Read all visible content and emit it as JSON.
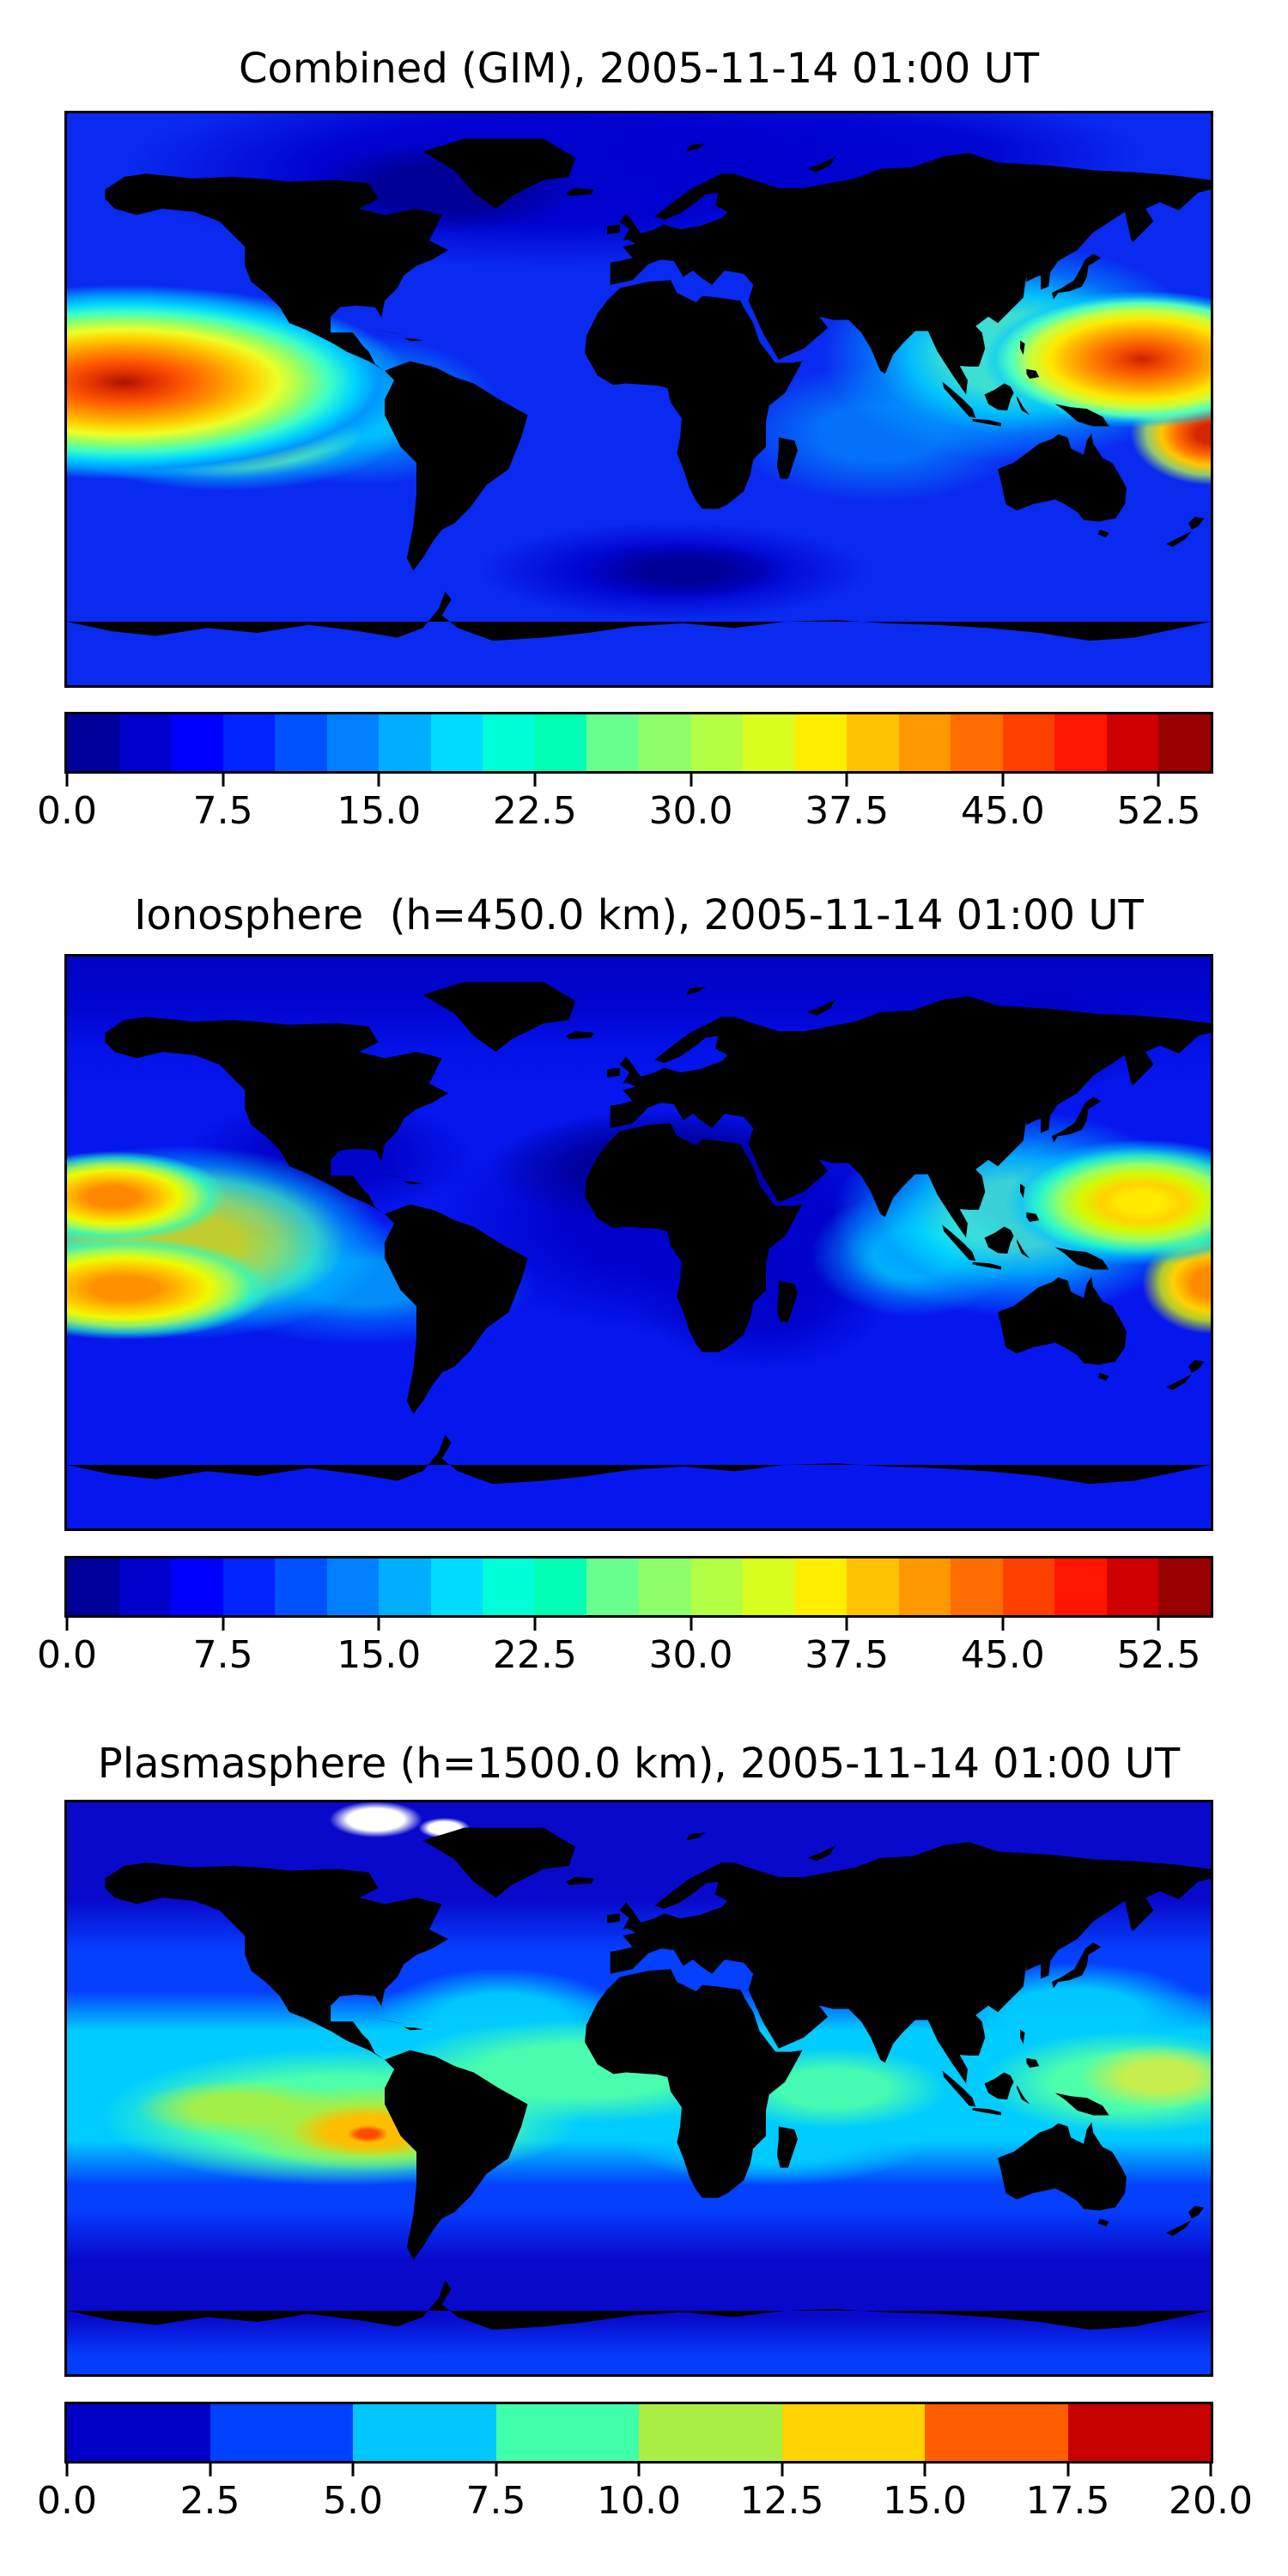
{
  "figure": {
    "background": "#ffffff",
    "map_border_color": "#000000",
    "coastline_color": "#000000"
  },
  "panels": [
    {
      "id": "combined",
      "title": "Combined (GIM), 2005-11-14 01:00 UT",
      "field_base": "#0a2af0",
      "field_layers": [
        "radial-gradient(ellipse 12% 8% at 33% 13%, rgba(0,0,150,0.95) 0% 50%, rgba(0,0,150,0) 100%)",
        "radial-gradient(ellipse 9% 5% at 54% 80%, rgba(0,0,150,0.95) 0% 40%, rgba(0,0,150,0) 100%)",
        "radial-gradient(ellipse 25% 17% at 5% 47%, #a81400 0%, #e03000 10%, #ff5a00 22%, #ff9400 34%, #ffd000 45%, #ecff28 54%, #96ff64 63%, #3cffc8 72%, #00d2ff 81%, #0096ff 89%, rgba(0,80,255,0) 100%)",
        "radial-gradient(ellipse 15% 10% at 14% 56%, rgba(255,214,0,0.9) 0% 22%, rgba(200,255,40,0.85) 40%, rgba(80,255,190,0.8) 60%, rgba(0,190,255,0.55) 78%, rgba(0,110,255,0) 100%)",
        "radial-gradient(ellipse 12% 13% at 26% 52%, rgba(0,216,255,0.85) 0% 35%, rgba(0,160,255,0.6) 62%, rgba(0,90,255,0) 100%)",
        "radial-gradient(ellipse 14% 12% at 94% 43%, #cc2200 0%, #f04800 14%, #ff7800 30%, #ffb400 46%, #ffe800 58%, #c8ff3c 70%, #50ffbe 82%, rgba(0,200,255,0.55) 92%, rgba(0,120,255,0) 100%)",
        "radial-gradient(ellipse 7% 9% at 100% 56%, #d42600 0% 18%, #ff6a00 42%, #ffc800 62%, rgba(190,255,70,0.75) 80%, rgba(0,200,255,0) 100%)",
        "radial-gradient(ellipse 17% 19% at 83% 42%, rgba(70,255,205,0.85) 0% 35%, rgba(0,225,255,0.8) 55%, rgba(0,160,255,0.55) 75%, rgba(0,80,255,0) 100%)",
        "radial-gradient(ellipse 13% 12% at 71% 56%, rgba(0,170,255,0.55) 0% 40%, rgba(0,100,255,0) 100%)",
        "radial-gradient(ellipse 38% 17% at 43% 10%, rgba(0,0,205,0.95) 0% 55%, rgba(0,0,205,0) 100%)",
        "radial-gradient(ellipse 26% 11% at 68% 7%, rgba(0,0,205,0.85) 0% 50%, rgba(0,0,205,0) 100%)",
        "radial-gradient(ellipse 18% 9% at 53% 80%, rgba(0,0,205,0.9) 0% 45%, rgba(0,0,205,0) 95%)"
      ],
      "colorbar": {
        "vmin": 0,
        "vmax": 55,
        "tick_values": [
          0,
          7.5,
          15,
          22.5,
          30,
          37.5,
          45,
          52.5
        ],
        "ticks": [
          "0.0",
          "7.5",
          "15.0",
          "22.5",
          "30.0",
          "37.5",
          "45.0",
          "52.5"
        ],
        "colors": [
          "#00009b",
          "#0000cd",
          "#0000ff",
          "#0023ff",
          "#0051ff",
          "#0080ff",
          "#00aeff",
          "#00dcff",
          "#00ffd9",
          "#00ffb3",
          "#69ff8e",
          "#8eff69",
          "#b3ff44",
          "#d9ff1e",
          "#ffed00",
          "#ffc200",
          "#ff9700",
          "#ff6c00",
          "#ff4100",
          "#ff1600",
          "#cf0000",
          "#990000"
        ]
      }
    },
    {
      "id": "ionosphere",
      "title": "Ionosphere  (h=450.0 km), 2005-11-14 01:00 UT",
      "field_base": "#0617ee",
      "field_layers": [
        "radial-gradient(ellipse 10% 8% at 4% 42%, #ff8800 0% 22%, #ffc400 42%, #eefa00 58%, rgba(160,255,90,0.9) 72%, rgba(40,255,195,0.7) 85%, rgba(0,160,255,0) 100%)",
        "radial-gradient(ellipse 13% 9% at 5% 58%, #ff9000 0% 22%, #ffc800 42%, #eefa00 58%, rgba(160,255,90,0.9) 73%, rgba(40,255,195,0.65) 86%, rgba(0,160,255,0) 100%)",
        "radial-gradient(ellipse 18% 17% at 10% 50%, rgba(238,250,0,0.8) 0% 28%, rgba(160,255,90,0.8) 48%, rgba(60,255,195,0.75) 66%, rgba(0,190,255,0.55) 80%, rgba(0,110,255,0) 100%)",
        "radial-gradient(ellipse 15% 11% at 26% 57%, rgba(0,190,255,0.7) 0% 35%, rgba(0,130,255,0.5) 62%, rgba(0,70,255,0) 100%)",
        "radial-gradient(ellipse 12% 11% at 94% 43%, #ffea00 0% 16%, #ffd200 30%, #d8f800 45%, #96ff64 60%, rgba(40,255,200,0.85) 75%, rgba(0,190,255,0.55) 88%, rgba(0,100,255,0) 100%)",
        "radial-gradient(ellipse 6% 9% at 100% 57%, #ff8c00 0% 28%, #ffd200 55%, rgba(216,248,0,0.8) 74%, rgba(80,255,195,0) 100%)",
        "radial-gradient(ellipse 16% 18% at 83% 45%, rgba(70,255,210,0.8) 0% 32%, rgba(0,215,255,0.75) 55%, rgba(0,150,255,0.55) 76%, rgba(0,80,255,0) 100%)",
        "radial-gradient(ellipse 9% 11% at 74% 52%, rgba(0,225,255,0.8) 0% 38%, rgba(0,150,255,0.5) 70%, rgba(0,80,255,0) 100%)",
        "radial-gradient(ellipse 15% 10% at 52% 37%, rgba(0,0,150,0.92) 0% 45%, rgba(0,0,150,0) 100%)",
        "radial-gradient(ellipse 23% 21% at 55% 46%, rgba(0,0,200,0.95) 0% 48%, rgba(0,0,200,0) 100%)",
        "radial-gradient(ellipse 11% 13% at 61% 60%, rgba(0,0,200,0.85) 0% 40%, rgba(0,0,200,0) 100%)",
        "radial-gradient(ellipse 13% 11% at 23% 35%, rgba(0,0,195,0.85) 0% 40%, rgba(0,0,195,0) 100%)",
        "linear-gradient(180deg, rgba(0,0,190,0.9) 0%, rgba(0,0,200,0.8) 9%, rgba(0,10,225,0.4) 16%, rgba(0,0,0,0) 25%)",
        "radial-gradient(ellipse 13% 10% at 83% 14%, rgba(0,0,175,0.9) 0% 40%, rgba(0,0,175,0) 100%)"
      ],
      "colorbar": {
        "vmin": 0,
        "vmax": 55,
        "tick_values": [
          0,
          7.5,
          15,
          22.5,
          30,
          37.5,
          45,
          52.5
        ],
        "ticks": [
          "0.0",
          "7.5",
          "15.0",
          "22.5",
          "30.0",
          "37.5",
          "45.0",
          "52.5"
        ],
        "colors": [
          "#00009b",
          "#0000cd",
          "#0000ff",
          "#0023ff",
          "#0051ff",
          "#0080ff",
          "#00aeff",
          "#00dcff",
          "#00ffd9",
          "#00ffb3",
          "#69ff8e",
          "#8eff69",
          "#b3ff44",
          "#d9ff1e",
          "#ffed00",
          "#ffc200",
          "#ff9700",
          "#ff6c00",
          "#ff4100",
          "#ff1600",
          "#cf0000",
          "#990000"
        ]
      }
    },
    {
      "id": "plasmasphere",
      "title": "Plasmasphere (h=1500.0 km), 2005-11-14 01:00 UT",
      "field_base": "#0909cc",
      "field_layers": [
        "radial-gradient(ellipse 4.5% 3.5% at 27% 3%, #ffffff 0% 55%, rgba(255,255,255,0) 90%)",
        "radial-gradient(ellipse 2.5% 2% at 33% 4.5%, #ffffff 0% 55%, rgba(255,255,255,0) 90%)",
        "radial-gradient(ellipse 1.8% 1.5% at 26.3% 58%, #ff4a00 0% 50%, rgba(255,74,0,0) 100%)",
        "radial-gradient(ellipse 7.5% 5% at 26.5% 57.5%, #ffbe00 0% 52%, rgba(255,190,0,0) 92%)",
        "radial-gradient(ellipse 14% 8% at 27% 57%, #a6ee44 0% 52%, rgba(166,238,68,0) 95%)",
        "radial-gradient(ellipse 9% 5% at 15% 53.5%, rgba(166,238,68,0.95) 0% 45%, rgba(166,238,68,0) 100%)",
        "radial-gradient(ellipse 7.5% 6% at 95.5% 48%, #c6ee4e 0% 42%, rgba(198,238,78,0) 95%)",
        "radial-gradient(ellipse 21% 12% at 24% 55%, #4dffaa 0% 58%, rgba(77,255,170,0) 100%)",
        "radial-gradient(ellipse 17% 9% at 45% 47%, rgba(77,255,170,0.95) 0% 52%, rgba(77,255,170,0) 100%)",
        "radial-gradient(ellipse 10% 7% at 67% 50%, rgba(77,255,170,0.9) 0% 48%, rgba(77,255,170,0) 100%)",
        "radial-gradient(ellipse 13% 9% at 93% 49%, #4dffaa 0% 52%, rgba(77,255,170,0) 100%)",
        "radial-gradient(ellipse 3% 3% at 57% 51%, #0540ff 0% 50%, rgba(5,64,255,0) 100%)",
        "radial-gradient(ellipse 11% 9% at 38% 38%, rgba(0,204,255,0.95) 0% 50%, rgba(0,204,255,0) 100%)",
        "radial-gradient(ellipse 12% 9% at 88% 37%, rgba(0,204,255,0.95) 0% 50%, rgba(0,204,255,0) 100%)",
        "radial-gradient(ellipse 14% 9% at 62% 58%, rgba(0,204,255,0.95) 0% 55%, rgba(0,204,255,0) 100%)",
        "linear-gradient(180deg, rgba(0,204,255,0) 33%, #00ccff 40% 59%, rgba(0,204,255,0) 67%)",
        "linear-gradient(180deg, rgba(5,64,255,0) 17%, #0540ff 26% 71%, rgba(5,64,255,0) 80%)",
        "linear-gradient(180deg, rgba(5,64,255,0) 90%, rgba(5,64,255,0.95) 97% 100%)"
      ],
      "colorbar": {
        "vmin": 0,
        "vmax": 20,
        "tick_values": [
          0,
          2.5,
          5,
          7.5,
          10,
          12.5,
          15,
          17.5,
          20
        ],
        "ticks": [
          "0.0",
          "2.5",
          "5.0",
          "7.5",
          "10.0",
          "12.5",
          "15.0",
          "17.5",
          "20.0"
        ],
        "colors": [
          "#0000c7",
          "#0040ff",
          "#00c8ff",
          "#40ffaa",
          "#aaee44",
          "#ffd200",
          "#ff5c00",
          "#c70000"
        ]
      }
    }
  ],
  "chart_data": [
    {
      "type": "heatmap",
      "subplot": 1,
      "title": "Combined (GIM), 2005-11-14 01:00 UT",
      "projection": "equirectangular world map, lon -180..180, lat -90..90, coastlines drawn in black",
      "colormap": "jet (filled contours)",
      "contour_interval": 2.5,
      "value_range": [
        0,
        55
      ],
      "colorbar_ticks": [
        0.0,
        7.5,
        15.0,
        22.5,
        30.0,
        37.5,
        45.0,
        52.5
      ],
      "features": [
        {
          "region": "central/eastern Pacific dayside maximum (dark red core)",
          "lon": -162,
          "lat": 5,
          "value": 54
        },
        {
          "region": "warm lobe extending southeast toward South America",
          "lon": -135,
          "lat": -10,
          "value": 35
        },
        {
          "region": "western Pacific maximum north of New Guinea (red core)",
          "lon": 158,
          "lat": 12,
          "value": 50
        },
        {
          "region": "western Pacific maximum at right map edge near Fiji",
          "lon": 175,
          "lat": -12,
          "value": 52
        },
        {
          "region": "cyan/green enhancement over Southeast Asia and Japan",
          "lon": 120,
          "lat": 15,
          "value": 25
        },
        {
          "region": "cyan enhancement over northern South America",
          "lon": -85,
          "lat": -5,
          "value": 20
        },
        {
          "region": "Arctic / North Atlantic minimum (darkest navy)",
          "lon": -45,
          "lat": 68,
          "value": 2
        },
        {
          "region": "south Atlantic / south Indian Ocean minimum",
          "lon": 10,
          "lat": -55,
          "value": 2
        }
      ]
    },
    {
      "type": "heatmap",
      "subplot": 2,
      "title": "Ionosphere  (h=450.0 km), 2005-11-14 01:00 UT",
      "projection": "equirectangular world map, lon -180..180, lat -90..90, coastlines drawn in black",
      "colormap": "jet (filled contours)",
      "contour_interval": 2.5,
      "value_range": [
        0,
        55
      ],
      "colorbar_ticks": [
        0.0,
        7.5,
        15.0,
        22.5,
        30.0,
        37.5,
        45.0,
        52.5
      ],
      "features": [
        {
          "region": "central Pacific northern EIA crest (orange core)",
          "lon": -164,
          "lat": 14,
          "value": 42
        },
        {
          "region": "central Pacific southern EIA crest (orange core)",
          "lon": -160,
          "lat": -15,
          "value": 42
        },
        {
          "region": "western Pacific yellow maximum",
          "lon": 160,
          "lat": 12,
          "value": 38
        },
        {
          "region": "western Pacific amber maximum at right map edge",
          "lon": 177,
          "lat": -13,
          "value": 42
        },
        {
          "region": "turquoise/cyan enhancement over Southeast Asia and Indian Ocean",
          "lon": 115,
          "lat": 0,
          "value": 22
        },
        {
          "region": "large dark-navy minimum over Sahara / Middle East",
          "lon": 10,
          "lat": 23,
          "value": 1.5
        },
        {
          "region": "dark-navy minimum over Gulf of Mexico / Caribbean",
          "lon": -95,
          "lat": 27,
          "value": 3
        },
        {
          "region": "Arctic minimum band",
          "lon": -60,
          "lat": 70,
          "value": 2
        }
      ]
    },
    {
      "type": "heatmap",
      "subplot": 3,
      "title": "Plasmasphere (h=1500.0 km), 2005-11-14 01:00 UT",
      "projection": "equirectangular world map, lon -180..180, lat -90..90, coastlines drawn in black",
      "colormap": "jet (filled contours)",
      "contour_interval": 2.5,
      "value_range": [
        0,
        20
      ],
      "colorbar_ticks": [
        0.0,
        2.5,
        5.0,
        7.5,
        10.0,
        12.5,
        15.0,
        17.5,
        20.0
      ],
      "features": [
        {
          "region": "maximum over Peru/Bolivia, South America (orange-red core)",
          "lon": -86,
          "lat": -14,
          "value": 17
        },
        {
          "region": "amber/yellow-green halo around South American maximum",
          "lon": -85,
          "lat": -13,
          "value": 13
        },
        {
          "region": "western Pacific secondary maximum (yellow-green)",
          "lon": 164,
          "lat": 5,
          "value": 12
        },
        {
          "region": "turquoise equatorial band segments",
          "lon": 0,
          "lat": -5,
          "value": 8.5
        },
        {
          "region": "cyan low-latitude band around the globe",
          "lon": 0,
          "lat": 0,
          "value": 6
        },
        {
          "region": "mid-latitude blue bands",
          "lon": 0,
          "lat": 35,
          "value": 3.5
        },
        {
          "region": "high-latitude navy background (north and ~55-75S)",
          "lon": 0,
          "lat": 65,
          "value": 1
        },
        {
          "region": "white masked patch near north magnetic pole (no data / below scale)",
          "lon": -75,
          "lat": 85,
          "value": null
        }
      ]
    }
  ]
}
